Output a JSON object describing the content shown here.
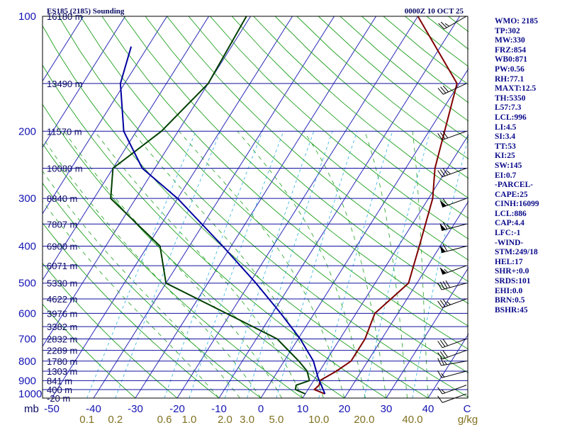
{
  "chart_data": {
    "type": "skew-t log-p sounding",
    "title": "ES185 (2185) Sounding",
    "valid_time": "0000Z 10 OCT 25",
    "y_axis": {
      "label": "mb",
      "scale": "log",
      "range": [
        1000,
        100
      ],
      "ticks": [
        100,
        200,
        300,
        400,
        500,
        600,
        700,
        800,
        900,
        1000
      ]
    },
    "x_axis": {
      "label": "C",
      "ticks": [
        -50,
        -40,
        -30,
        -20,
        -10,
        0,
        10,
        20,
        30,
        40
      ]
    },
    "mixing_ratio": {
      "label": "g/kg",
      "ticks": [
        "0.1",
        "0.2",
        "0.6",
        "1.0",
        "2.0",
        "3.0",
        "5.0",
        "10.0",
        "20.0",
        "40.0"
      ],
      "values": [
        0.1,
        0.2,
        0.6,
        1.0,
        2.0,
        3.0,
        5.0,
        10.0,
        20.0,
        40.0
      ]
    },
    "height_labels": [
      {
        "p": 100,
        "label": "16180 m"
      },
      {
        "p": 150,
        "label": "13490 m"
      },
      {
        "p": 200,
        "label": "11570 m"
      },
      {
        "p": 250,
        "label": "10080 m"
      },
      {
        "p": 300,
        "label": "8840 m"
      },
      {
        "p": 350,
        "label": "7807 m"
      },
      {
        "p": 400,
        "label": "6900 m"
      },
      {
        "p": 450,
        "label": "6071 m"
      },
      {
        "p": 500,
        "label": "5330 m"
      },
      {
        "p": 550,
        "label": "4622 m"
      },
      {
        "p": 600,
        "label": "3976 m"
      },
      {
        "p": 650,
        "label": "3382 m"
      },
      {
        "p": 700,
        "label": "2832 m"
      },
      {
        "p": 750,
        "label": "2289 m"
      },
      {
        "p": 800,
        "label": "1780 m"
      },
      {
        "p": 850,
        "label": "1303 m"
      },
      {
        "p": 900,
        "label": "841 m"
      },
      {
        "p": 950,
        "label": "400 m"
      },
      {
        "p": 1000,
        "label": "-20 m"
      }
    ],
    "series": [
      {
        "name": "Temperature",
        "color": "#800000",
        "points": [
          [
            975,
            14.7
          ],
          [
            950,
            11.5
          ],
          [
            925,
            12.0
          ],
          [
            900,
            11.5
          ],
          [
            850,
            14.0
          ],
          [
            800,
            16.0
          ],
          [
            700,
            16.0
          ],
          [
            600,
            14.5
          ],
          [
            500,
            18.0
          ],
          [
            400,
            15.0
          ],
          [
            300,
            11.0
          ],
          [
            250,
            7.0
          ],
          [
            150,
            -0.5
          ],
          [
            100,
            -20.0
          ]
        ]
      },
      {
        "name": "Dewpoint",
        "color": "#004000",
        "points": [
          [
            975,
            10.0
          ],
          [
            950,
            7.0
          ],
          [
            925,
            6.5
          ],
          [
            900,
            9.0
          ],
          [
            850,
            7.0
          ],
          [
            800,
            3.5
          ],
          [
            700,
            -5.0
          ],
          [
            600,
            -21.0
          ],
          [
            500,
            -40.0
          ],
          [
            400,
            -47.0
          ],
          [
            300,
            -66.0
          ],
          [
            250,
            -70.0
          ],
          [
            200,
            -64.0
          ],
          [
            150,
            -60.0
          ],
          [
            100,
            -61.0
          ]
        ]
      },
      {
        "name": "Parcel",
        "color": "#0000a0",
        "points": [
          [
            975,
            14.7
          ],
          [
            886,
            10.7
          ],
          [
            800,
            7.0
          ],
          [
            700,
            0.5
          ],
          [
            600,
            -8.0
          ],
          [
            500,
            -18.5
          ],
          [
            400,
            -32.0
          ],
          [
            300,
            -50.0
          ],
          [
            250,
            -63.0
          ],
          [
            200,
            -73.0
          ],
          [
            150,
            -81.0
          ],
          [
            120,
            -84.0
          ]
        ]
      }
    ],
    "wind_barbs": [
      {
        "p": 975,
        "dir": 250,
        "spd": 10
      },
      {
        "p": 925,
        "dir": 250,
        "spd": 15
      },
      {
        "p": 850,
        "dir": 255,
        "spd": 15
      },
      {
        "p": 800,
        "dir": 260,
        "spd": 25
      },
      {
        "p": 750,
        "dir": 250,
        "spd": 30
      },
      {
        "p": 700,
        "dir": 250,
        "spd": 30
      },
      {
        "p": 550,
        "dir": 250,
        "spd": 35
      },
      {
        "p": 500,
        "dir": 255,
        "spd": 40
      },
      {
        "p": 450,
        "dir": 250,
        "spd": 55
      },
      {
        "p": 400,
        "dir": 255,
        "spd": 60
      },
      {
        "p": 350,
        "dir": 255,
        "spd": 65
      },
      {
        "p": 300,
        "dir": 250,
        "spd": 60
      },
      {
        "p": 250,
        "dir": 250,
        "spd": 35
      },
      {
        "p": 200,
        "dir": 250,
        "spd": 30
      },
      {
        "p": 150,
        "dir": 245,
        "spd": 30
      },
      {
        "p": 100,
        "dir": 240,
        "spd": 25
      }
    ]
  },
  "indices": [
    "WMO: 2185",
    "TP:302",
    "MW:330",
    "FRZ:854",
    "WB0:871",
    "PW:0.56",
    "RH:77.1",
    "MAXT:12.5",
    "TH:5350",
    "L57:7.3",
    "LCL:996",
    "LI:4.5",
    "SI:3.4",
    "TT:53",
    "KI:25",
    "SW:145",
    "EI:0.7",
    "-PARCEL-",
    "CAPE:25",
    "CINH:16099",
    "LCL:886",
    "CAP:4.4",
    "LFC:-1",
    "-WIND-",
    "STM:249/18",
    "HEL:17",
    "SHR+:0.0",
    "SRDS:101",
    "EHI:0.0",
    "BRN:0.5",
    "BSHR:45"
  ],
  "colors": {
    "isobar": "#1010a0",
    "isotherm": "#2a2ab8",
    "dry_adiabat": "#1fa01f",
    "moist_adiabat": "#1fa01f",
    "mixing_ratio": "#30b0e0",
    "frame": "#000000",
    "label_blue": "#1414b4",
    "label_dark": "#0a0a64",
    "mixing_label": "#807020"
  }
}
